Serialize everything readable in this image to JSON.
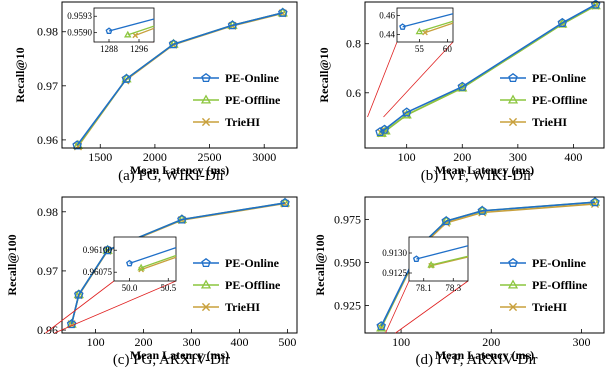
{
  "legend_entries": [
    {
      "name": "PE-Online",
      "color": "#1f6fc8",
      "marker": "pentagon"
    },
    {
      "name": "PE-Offline",
      "color": "#8cc63f",
      "marker": "triangle"
    },
    {
      "name": "TrieHI",
      "color": "#c8a03c",
      "marker": "x"
    }
  ],
  "chart_data": [
    {
      "type": "line",
      "caption": "(a) PG, WIKI-Dir",
      "xlabel": "Mean Latency (ms)",
      "ylabel": "Recall@10",
      "xlim": [
        1150,
        3300
      ],
      "ylim": [
        0.9585,
        0.9855
      ],
      "xticks": [
        1500,
        2000,
        2500,
        3000
      ],
      "yticks": [
        0.96,
        0.97,
        0.98
      ],
      "xtick_labels": [
        "1500",
        "2000",
        "2500",
        "3000"
      ],
      "ytick_labels": [
        "0.96",
        "0.97",
        "0.98"
      ],
      "legend": "bottom-right",
      "series": [
        {
          "name": "PE-Online",
          "x": [
            1288,
            1740,
            2170,
            2710,
            3170
          ],
          "y": [
            0.959,
            0.9713,
            0.9777,
            0.9812,
            0.9835
          ]
        },
        {
          "name": "PE-Offline",
          "x": [
            1296,
            1740,
            2170,
            2710,
            3170
          ],
          "y": [
            0.959,
            0.9713,
            0.9777,
            0.9812,
            0.9835
          ]
        },
        {
          "name": "TrieHI",
          "x": [
            1296,
            1730,
            2170,
            2710,
            3170
          ],
          "y": [
            0.9588,
            0.971,
            0.9776,
            0.9811,
            0.9834
          ]
        }
      ],
      "inset": {
        "xlim": [
          1284,
          1300
        ],
        "ylim": [
          0.95883,
          0.95945
        ],
        "xticks": [
          1288,
          1296
        ],
        "yticks": [
          0.959,
          0.9593
        ],
        "xtick_labels": [
          "1288",
          "1296"
        ],
        "ytick_labels": [
          "0.9590",
          "0.9593"
        ],
        "series": [
          {
            "name": "PE-Online",
            "x": [
              1288,
              1300
            ],
            "y": [
              0.95903,
              0.95925
            ]
          },
          {
            "name": "PE-Offline",
            "x": [
              1293,
              1300
            ],
            "y": [
              0.95896,
              0.95912
            ]
          },
          {
            "name": "TrieHI",
            "x": [
              1295,
              1300
            ],
            "y": [
              0.95895,
              0.95908
            ]
          }
        ]
      }
    },
    {
      "type": "line",
      "caption": "(b) IVF, WIKI-Dir",
      "xlabel": "Mean Latency (ms)",
      "ylabel": "Recall@10",
      "xlim": [
        25,
        455
      ],
      "ylim": [
        0.375,
        0.97
      ],
      "xticks": [
        100,
        200,
        300,
        400
      ],
      "yticks": [
        0.6,
        0.8
      ],
      "xtick_labels": [
        "100",
        "200",
        "300",
        "400"
      ],
      "ytick_labels": [
        "0.6",
        "0.8"
      ],
      "legend": "bottom-right",
      "series": [
        {
          "name": "PE-Online",
          "x": [
            52,
            60,
            100,
            200,
            380,
            440
          ],
          "y": [
            0.44,
            0.45,
            0.52,
            0.625,
            0.885,
            0.96
          ]
        },
        {
          "name": "PE-Offline",
          "x": [
            55,
            62,
            100,
            200,
            380,
            440
          ],
          "y": [
            0.435,
            0.445,
            0.51,
            0.62,
            0.88,
            0.955
          ]
        },
        {
          "name": "TrieHI",
          "x": [
            55,
            62,
            100,
            200,
            380,
            440
          ],
          "y": [
            0.435,
            0.445,
            0.51,
            0.62,
            0.88,
            0.955
          ]
        }
      ],
      "inset": {
        "xlim": [
          51,
          61
        ],
        "ylim": [
          0.432,
          0.468
        ],
        "xticks": [
          55,
          60
        ],
        "yticks": [
          0.44,
          0.46
        ],
        "xtick_labels": [
          "55",
          "60"
        ],
        "ytick_labels": [
          "0.44",
          "0.46"
        ],
        "series": [
          {
            "name": "PE-Online",
            "x": [
              52,
              61
            ],
            "y": [
              0.448,
              0.462
            ]
          },
          {
            "name": "PE-Offline",
            "x": [
              55,
              61
            ],
            "y": [
              0.443,
              0.454
            ]
          },
          {
            "name": "TrieHI",
            "x": [
              56,
              61
            ],
            "y": [
              0.442,
              0.452
            ]
          }
        ]
      }
    },
    {
      "type": "line",
      "caption": "(c) PG, ARXIV-Dir",
      "xlabel": "Mean Latency (ms)",
      "ylabel": "Recall@100",
      "xlim": [
        30,
        520
      ],
      "ylim": [
        0.9595,
        0.9825
      ],
      "xticks": [
        100,
        200,
        300,
        400,
        500
      ],
      "yticks": [
        0.96,
        0.97,
        0.98
      ],
      "xtick_labels": [
        "100",
        "200",
        "300",
        "400",
        "500"
      ],
      "ytick_labels": [
        "0.96",
        "0.97",
        "0.98"
      ],
      "legend": "bottom-right",
      "series": [
        {
          "name": "PE-Online",
          "x": [
            50,
            65,
            125,
            280,
            495
          ],
          "y": [
            0.961,
            0.966,
            0.9735,
            0.9787,
            0.9815
          ]
        },
        {
          "name": "PE-Offline",
          "x": [
            50,
            65,
            125,
            280,
            495
          ],
          "y": [
            0.961,
            0.966,
            0.9735,
            0.9787,
            0.9815
          ]
        },
        {
          "name": "TrieHI",
          "x": [
            50,
            65,
            125,
            280,
            495
          ],
          "y": [
            0.961,
            0.9659,
            0.9734,
            0.9786,
            0.9814
          ]
        }
      ],
      "inset": {
        "xlim": [
          49.8,
          50.6
        ],
        "ylim": [
          0.96065,
          0.96115
        ],
        "xticks": [
          50.0,
          50.5
        ],
        "yticks": [
          0.96075,
          0.961
        ],
        "xtick_labels": [
          "50.0",
          "50.5"
        ],
        "ytick_labels": [
          "0.96075",
          "0.96100"
        ],
        "series": [
          {
            "name": "PE-Online",
            "x": [
              50.0,
              50.6
            ],
            "y": [
              0.96085,
              0.96103
            ]
          },
          {
            "name": "PE-Offline",
            "x": [
              50.15,
              50.6
            ],
            "y": [
              0.9608,
              0.96094
            ]
          },
          {
            "name": "TrieHI",
            "x": [
              50.15,
              50.6
            ],
            "y": [
              0.96078,
              0.96092
            ]
          }
        ]
      }
    },
    {
      "type": "line",
      "caption": "(d) IVF, ARXIV-Dir",
      "xlabel": "Mean Latency (ms)",
      "ylabel": "Recall@100",
      "xlim": [
        60,
        325
      ],
      "ylim": [
        0.909,
        0.988
      ],
      "xticks": [
        100,
        200,
        300
      ],
      "yticks": [
        0.925,
        0.95,
        0.975
      ],
      "xtick_labels": [
        "100",
        "200",
        "300"
      ],
      "ytick_labels": [
        "0.925",
        "0.950",
        "0.975"
      ],
      "legend": "bottom-right",
      "series": [
        {
          "name": "PE-Online",
          "x": [
            78,
            122,
            150,
            190,
            315
          ],
          "y": [
            0.913,
            0.96,
            0.974,
            0.98,
            0.985
          ]
        },
        {
          "name": "PE-Offline",
          "x": [
            78,
            122,
            150,
            190,
            315
          ],
          "y": [
            0.912,
            0.96,
            0.974,
            0.98,
            0.985
          ]
        },
        {
          "name": "TrieHI",
          "x": [
            78,
            122,
            150,
            190,
            315
          ],
          "y": [
            0.912,
            0.959,
            0.973,
            0.979,
            0.984
          ]
        }
      ],
      "inset": {
        "xlim": [
          78.0,
          78.4
        ],
        "ylim": [
          0.9123,
          0.9134
        ],
        "xticks": [
          78.1,
          78.3
        ],
        "yticks": [
          0.9125,
          0.913
        ],
        "xtick_labels": [
          "78.1",
          "78.3"
        ],
        "ytick_labels": [
          "0.9125",
          "0.9130"
        ],
        "series": [
          {
            "name": "PE-Online",
            "x": [
              78.05,
              78.4
            ],
            "y": [
              0.91285,
              0.91318
            ]
          },
          {
            "name": "PE-Offline",
            "x": [
              78.15,
              78.4
            ],
            "y": [
              0.9127,
              0.91292
            ]
          },
          {
            "name": "TrieHI",
            "x": [
              78.15,
              78.4
            ],
            "y": [
              0.91268,
              0.9129
            ]
          }
        ]
      }
    }
  ]
}
